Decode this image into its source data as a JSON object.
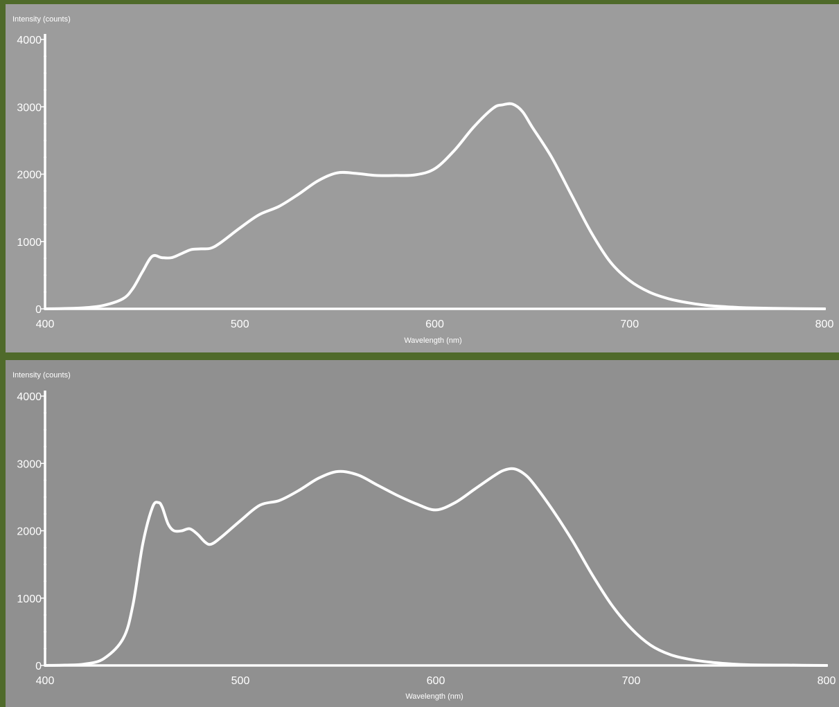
{
  "chart_data": [
    {
      "type": "line",
      "ylabel": "Intensity (counts)",
      "xlabel": "Wavelength (nm)",
      "xlim": [
        400,
        800
      ],
      "ylim": [
        0,
        4000
      ],
      "xticks": [
        400,
        500,
        600,
        700,
        800
      ],
      "yticks": [
        0,
        1000,
        2000,
        3000,
        4000
      ],
      "x_tick_labels": [
        "400",
        "500",
        "600",
        "700",
        "800"
      ],
      "y_tick_labels": [
        "0",
        "1000",
        "2000",
        "3000",
        "4000"
      ],
      "grid": false,
      "series": [
        {
          "x": [
            400,
            410,
            420,
            430,
            440,
            445,
            450,
            455,
            460,
            465,
            470,
            475,
            480,
            485,
            490,
            500,
            510,
            520,
            530,
            540,
            550,
            560,
            570,
            580,
            590,
            600,
            610,
            620,
            630,
            635,
            640,
            645,
            650,
            660,
            670,
            680,
            690,
            700,
            710,
            720,
            730,
            740,
            750,
            760,
            780,
            800
          ],
          "y": [
            0,
            5,
            15,
            50,
            150,
            300,
            550,
            780,
            760,
            760,
            820,
            880,
            890,
            900,
            980,
            1200,
            1400,
            1520,
            1700,
            1900,
            2020,
            2010,
            1980,
            1980,
            1990,
            2080,
            2350,
            2700,
            2980,
            3030,
            3040,
            2930,
            2700,
            2250,
            1700,
            1150,
            700,
            420,
            250,
            150,
            90,
            50,
            30,
            15,
            5,
            0
          ]
        }
      ]
    },
    {
      "type": "line",
      "ylabel": "Intensity (counts)",
      "xlabel": "Wavelength (nm)",
      "xlim": [
        400,
        800
      ],
      "ylim": [
        0,
        4000
      ],
      "xticks": [
        400,
        500,
        600,
        700,
        800
      ],
      "yticks": [
        0,
        1000,
        2000,
        3000,
        4000
      ],
      "x_tick_labels": [
        "400",
        "500",
        "600",
        "700",
        "800"
      ],
      "y_tick_labels": [
        "0",
        "1000",
        "2000",
        "3000",
        "4000"
      ],
      "grid": false,
      "series": [
        {
          "x": [
            400,
            410,
            420,
            430,
            440,
            445,
            450,
            455,
            458,
            460,
            463,
            466,
            470,
            474,
            478,
            482,
            485,
            490,
            500,
            510,
            520,
            530,
            540,
            550,
            560,
            570,
            580,
            590,
            600,
            610,
            620,
            630,
            635,
            640,
            645,
            650,
            660,
            670,
            680,
            690,
            700,
            710,
            720,
            730,
            740,
            750,
            760,
            780,
            800
          ],
          "y": [
            0,
            5,
            20,
            100,
            400,
            900,
            1800,
            2350,
            2420,
            2350,
            2100,
            2000,
            2000,
            2030,
            1950,
            1830,
            1800,
            1900,
            2150,
            2380,
            2450,
            2600,
            2780,
            2880,
            2830,
            2680,
            2530,
            2400,
            2310,
            2420,
            2620,
            2820,
            2900,
            2920,
            2850,
            2700,
            2300,
            1850,
            1350,
            900,
            550,
            300,
            160,
            90,
            50,
            25,
            10,
            5,
            0
          ]
        }
      ]
    }
  ]
}
